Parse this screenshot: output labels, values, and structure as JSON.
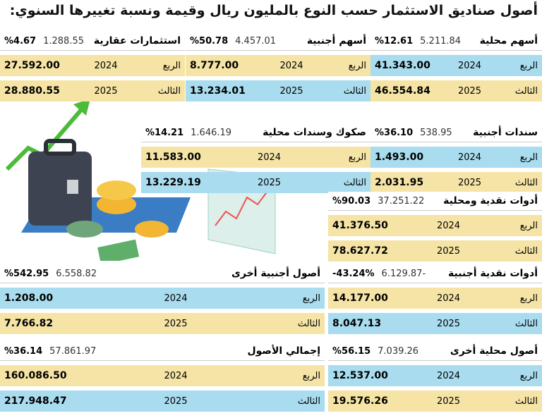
{
  "header": {
    "title": "أصول صناديق الاستثمار حسب النوع بالمليون ريال وقيمة ونسبة تغييرها السنوي:"
  },
  "blocks": [
    {
      "name": "أسهم محلية",
      "change": "5.211.84",
      "percent": "%12.61",
      "rows": [
        {
          "quarter": "الربع",
          "year": "2024",
          "value": "41.343.00"
        },
        {
          "quarter": "الثالث",
          "year": "2025",
          "value": "46.554.84"
        }
      ]
    },
    {
      "name": "أسهم أجنبية",
      "change": "4.457.01",
      "percent": "%50.78",
      "rows": [
        {
          "quarter": "الربع",
          "year": "2024",
          "value": "8.777.00"
        },
        {
          "quarter": "الثالث",
          "year": "2025",
          "value": "13.234.01"
        }
      ]
    },
    {
      "name": "استثمارات عقارية",
      "change": "1.288.55",
      "percent": "%4.67",
      "rows": [
        {
          "quarter": "الربع",
          "year": "2024",
          "value": "27.592.00"
        },
        {
          "quarter": "الثالث",
          "year": "2025",
          "value": "28.880.55"
        }
      ]
    },
    {
      "name": "سندات أجنبية",
      "change": "538.95",
      "percent": "%36.10",
      "rows": [
        {
          "quarter": "الربع",
          "year": "2024",
          "value": "1.493.00"
        },
        {
          "quarter": "الثالث",
          "year": "2025",
          "value": "2.031.95"
        }
      ]
    },
    {
      "name": "صكوك وسندات محلية",
      "change": "1.646.19",
      "percent": "%14.21",
      "rows": [
        {
          "quarter": "الربع",
          "year": "2024",
          "value": "11.583.00"
        },
        {
          "quarter": "الثالث",
          "year": "2025",
          "value": "13.229.19"
        }
      ]
    },
    {
      "name": "أدوات نقدية ومحلية",
      "change": "37.251.22",
      "percent": "%90.03",
      "rows": [
        {
          "quarter": "الربع",
          "year": "2024",
          "value": "41.376.50"
        },
        {
          "quarter": "الثالث",
          "year": "2025",
          "value": "78.627.72"
        }
      ]
    },
    {
      "name": "أدوات نقدية أجنبية",
      "change": "6.129.87-",
      "percent": "-43.24%",
      "rows": [
        {
          "quarter": "الربع",
          "year": "2024",
          "value": "14.177.00"
        },
        {
          "quarter": "الثالث",
          "year": "2025",
          "value": "8.047.13"
        }
      ]
    },
    {
      "name": "أصول أجنبية أخرى",
      "change": "6.558.82",
      "percent": "%542.95",
      "rows": [
        {
          "quarter": "الربع",
          "year": "2024",
          "value": "1.208.00"
        },
        {
          "quarter": "الثالث",
          "year": "2025",
          "value": "7.766.82"
        }
      ]
    },
    {
      "name": "أصول محلية أخرى",
      "change": "7.039.26",
      "percent": "%56.15",
      "rows": [
        {
          "quarter": "الربع",
          "year": "2024",
          "value": "12.537.00"
        },
        {
          "quarter": "الثالث",
          "year": "2025",
          "value": "19.576.26"
        }
      ]
    },
    {
      "name": "إجمالي الأصول",
      "change": "57.861.97",
      "percent": "%36.14",
      "rows": [
        {
          "quarter": "الربع",
          "year": "2024",
          "value": "160.086.50"
        },
        {
          "quarter": "الثالث",
          "year": "2025",
          "value": "217.948.47"
        }
      ]
    }
  ]
}
